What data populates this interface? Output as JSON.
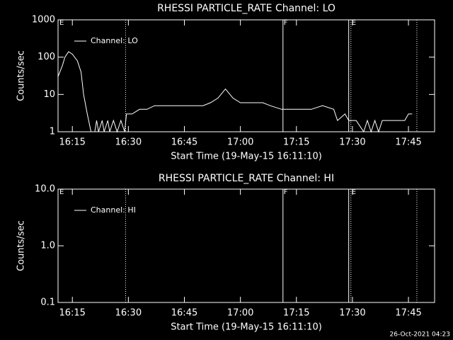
{
  "chart_data": [
    {
      "type": "line",
      "title": "RHESSI PARTICLE_RATE Channel: LO",
      "x_label": "Start Time (19-May-15 16:11:10)",
      "y_label": "Counts/sec",
      "log_y": true,
      "ylim": [
        1,
        1000
      ],
      "yticks": [
        1,
        10,
        100,
        1000
      ],
      "xlim": [
        "16:11:10",
        "17:52:00"
      ],
      "xticks": [
        "16:15",
        "16:30",
        "16:45",
        "17:00",
        "17:15",
        "17:30",
        "17:45"
      ],
      "flag": "E",
      "legend": "top-left",
      "markers": [
        {
          "x": "16:29:15",
          "style": "dotted"
        },
        {
          "x": "17:11:24",
          "style": "solid",
          "label": "F"
        },
        {
          "x": "17:29:00",
          "style": "solid"
        },
        {
          "x": "17:29:35",
          "style": "dotted",
          "label": "E"
        },
        {
          "x": "17:47:15",
          "style": "dotted"
        }
      ],
      "x": [
        "16:11:10",
        "16:12:20",
        "16:13:00",
        "16:14:00",
        "16:15:00",
        "16:16:20",
        "16:17:20",
        "16:18:00",
        "16:19:00",
        "16:20:00",
        "16:21:00",
        "16:21:30",
        "16:22:00",
        "16:23:00",
        "16:23:30",
        "16:24:30",
        "16:25:00",
        "16:26:00",
        "16:27:00",
        "16:28:00",
        "16:29:00",
        "16:29:30",
        "16:31:00",
        "16:33:00",
        "16:35:00",
        "16:37:00",
        "16:40:00",
        "16:43:00",
        "16:46:00",
        "16:50:00",
        "16:52:00",
        "16:54:00",
        "16:56:00",
        "16:58:00",
        "17:00:00",
        "17:03:00",
        "17:06:00",
        "17:08:00",
        "17:11:00",
        "17:15:00",
        "17:19:00",
        "17:22:00",
        "17:25:00",
        "17:26:00",
        "17:28:00",
        "17:29:00",
        "17:31:00",
        "17:33:00",
        "17:34:00",
        "17:35:00",
        "17:36:00",
        "17:37:00",
        "17:38:00",
        "17:44:00",
        "17:45:00",
        "17:46:00"
      ],
      "series": [
        {
          "name": "Channel: LO",
          "color": "#ffffff",
          "values": [
            30,
            60,
            100,
            140,
            120,
            80,
            40,
            10,
            3,
            1,
            1,
            2,
            1,
            2,
            1,
            2,
            1,
            2,
            1,
            2,
            1,
            3,
            3,
            4,
            4,
            5,
            5,
            5,
            5,
            5,
            6,
            8,
            14,
            8,
            6,
            6,
            6,
            5,
            4,
            4,
            4,
            5,
            4,
            2,
            3,
            2,
            2,
            1,
            2,
            1,
            2,
            1,
            2,
            2,
            3,
            3
          ]
        }
      ]
    },
    {
      "type": "line",
      "title": "RHESSI PARTICLE_RATE Channel: HI",
      "x_label": "Start Time (19-May-15 16:11:10)",
      "y_label": "Counts/sec",
      "log_y": true,
      "ylim": [
        0.1,
        10
      ],
      "yticks": [
        {
          "value": 0.1,
          "label": "0.1"
        },
        {
          "value": 1,
          "label": "1.0"
        },
        {
          "value": 10,
          "label": "10.0"
        }
      ],
      "xlim": [
        "16:11:10",
        "17:52:00"
      ],
      "xticks": [
        "16:15",
        "16:30",
        "16:45",
        "17:00",
        "17:15",
        "17:30",
        "17:45"
      ],
      "flag": "E",
      "legend": "top-left",
      "markers": [
        {
          "x": "16:29:15",
          "style": "dotted"
        },
        {
          "x": "17:11:24",
          "style": "solid",
          "label": "F"
        },
        {
          "x": "17:29:00",
          "style": "solid"
        },
        {
          "x": "17:29:35",
          "style": "dotted",
          "label": "E"
        },
        {
          "x": "17:47:15",
          "style": "dotted"
        }
      ],
      "x": [],
      "series": [
        {
          "name": "Channel: HI",
          "color": "#ffffff",
          "values": []
        }
      ]
    }
  ],
  "footer": "26-Oct-2021 04:23"
}
